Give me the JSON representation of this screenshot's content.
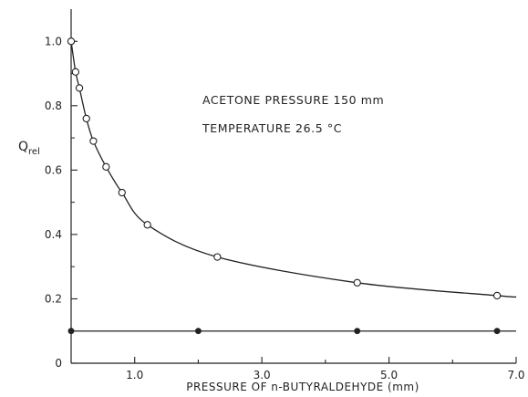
{
  "chart_data": {
    "type": "scatter",
    "title": "",
    "xlabel": "PRESSURE OF n-BUTYRALDEHYDE (mm)",
    "ylabel_main": "Q",
    "ylabel_sub": "rel",
    "xlim": [
      0,
      7.0
    ],
    "ylim": [
      0,
      1.1
    ],
    "x_ticks": [
      1.0,
      3.0,
      5.0,
      7.0
    ],
    "x_tick_labels": [
      "1.0",
      "3.0",
      "5.0",
      "7.0"
    ],
    "y_ticks": [
      0,
      0.2,
      0.4,
      0.6,
      0.8,
      1.0
    ],
    "y_tick_labels": [
      "0",
      "0.2",
      "0.4",
      "0.6",
      "0.8",
      "1.0"
    ],
    "grid": false,
    "annotations": [
      "ACETONE PRESSURE 150 mm",
      "TEMPERATURE 26.5 °C"
    ],
    "series": [
      {
        "marker": "open-circle",
        "fit_curve": true,
        "x": [
          0.0,
          0.07,
          0.13,
          0.24,
          0.35,
          0.55,
          0.8,
          1.2,
          2.3,
          4.5,
          6.7
        ],
        "y": [
          1.0,
          0.905,
          0.855,
          0.76,
          0.69,
          0.61,
          0.53,
          0.43,
          0.33,
          0.25,
          0.21
        ]
      },
      {
        "marker": "filled-circle",
        "fit_curve": false,
        "line": true,
        "x": [
          0.0,
          2.0,
          4.5,
          6.7
        ],
        "y": [
          0.1,
          0.1,
          0.1,
          0.1
        ]
      }
    ]
  }
}
